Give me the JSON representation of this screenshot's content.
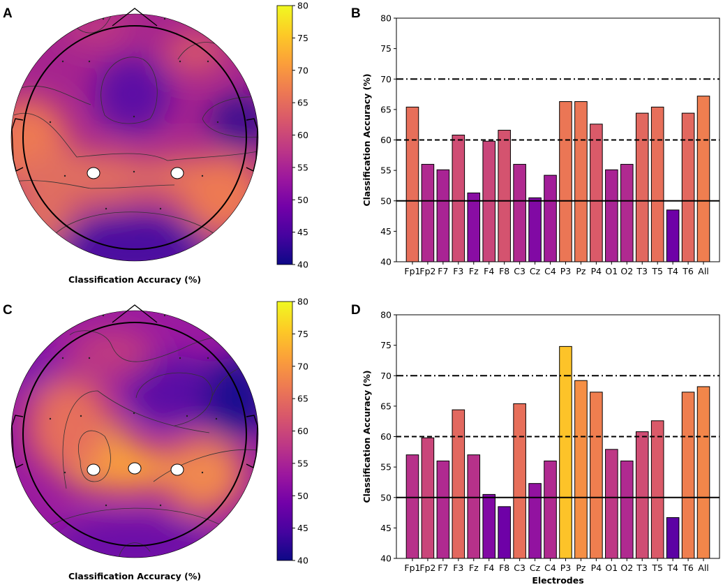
{
  "figure": {
    "colormap": [
      "#0d0887",
      "#46039f",
      "#7201a8",
      "#9c179e",
      "#bd3786",
      "#d8576b",
      "#ed7953",
      "#fb9f3a",
      "#fdca26",
      "#f0f921"
    ],
    "reference_lines": [
      {
        "value": 70,
        "style": "dashdot"
      },
      {
        "value": 60,
        "style": "dashed"
      },
      {
        "value": 50,
        "style": "solid"
      }
    ]
  },
  "chart_data": [
    {
      "panel": "A",
      "type": "heatmap",
      "subtype": "topographic scalp map",
      "xlabel": "Classification Accuracy (%)",
      "colorbar": {
        "min": 40,
        "max": 80,
        "ticks": [
          "80",
          "75",
          "70",
          "65",
          "60",
          "55",
          "50",
          "45",
          "40"
        ]
      },
      "highlighted_electrodes": [
        "C3",
        "C4"
      ],
      "regions": [
        {
          "area": "frontal-midline",
          "value": 50
        },
        {
          "area": "right-frontal",
          "value": 45
        },
        {
          "area": "left-temporal",
          "value": 67
        },
        {
          "area": "central-strip",
          "value": 64
        },
        {
          "area": "right-parietal",
          "value": 66
        },
        {
          "area": "occipital",
          "value": 47
        }
      ]
    },
    {
      "panel": "B",
      "type": "bar",
      "title": "",
      "xlabel": "",
      "ylabel": "Classification Accuracy (%)",
      "ylim": [
        40,
        80
      ],
      "yticks": [
        40,
        45,
        50,
        55,
        60,
        65,
        70,
        75,
        80
      ],
      "categories": [
        "Fp1",
        "Fp2",
        "F7",
        "F3",
        "Fz",
        "F4",
        "F8",
        "C3",
        "Cz",
        "C4",
        "P3",
        "Pz",
        "P4",
        "O1",
        "O2",
        "T3",
        "T5",
        "T4",
        "T6",
        "All"
      ],
      "values": [
        65.4,
        56.0,
        55.1,
        60.8,
        51.3,
        59.8,
        61.6,
        56.0,
        50.5,
        54.2,
        66.3,
        66.3,
        62.6,
        55.1,
        56.0,
        64.4,
        65.4,
        48.5,
        64.4,
        67.2
      ]
    },
    {
      "panel": "C",
      "type": "heatmap",
      "subtype": "topographic scalp map",
      "xlabel": "Classification Accuracy (%)",
      "colorbar": {
        "min": 40,
        "max": 80,
        "ticks": [
          "80",
          "75",
          "70",
          "65",
          "60",
          "55",
          "50",
          "45",
          "40"
        ]
      },
      "highlighted_electrodes": [
        "C3",
        "Cz",
        "C4"
      ],
      "regions": [
        {
          "area": "left-central",
          "value": 74
        },
        {
          "area": "right-frontal",
          "value": 42
        },
        {
          "area": "right-parietal",
          "value": 67
        },
        {
          "area": "occipital",
          "value": 52
        }
      ]
    },
    {
      "panel": "D",
      "type": "bar",
      "title": "",
      "xlabel": "Electrodes",
      "ylabel": "Classification Accuracy (%)",
      "ylim": [
        40,
        80
      ],
      "yticks": [
        40,
        45,
        50,
        55,
        60,
        65,
        70,
        75,
        80
      ],
      "categories": [
        "Fp1",
        "Fp2",
        "F7",
        "F3",
        "Fz",
        "F4",
        "F8",
        "C3",
        "Cz",
        "C4",
        "P3",
        "Pz",
        "P4",
        "O1",
        "O2",
        "T3",
        "T5",
        "T4",
        "T6",
        "All"
      ],
      "values": [
        57.0,
        59.8,
        56.0,
        64.4,
        57.0,
        50.5,
        48.5,
        65.4,
        52.3,
        56.0,
        74.8,
        69.2,
        67.3,
        57.9,
        56.0,
        60.8,
        62.6,
        46.7,
        67.3,
        68.2
      ]
    }
  ]
}
